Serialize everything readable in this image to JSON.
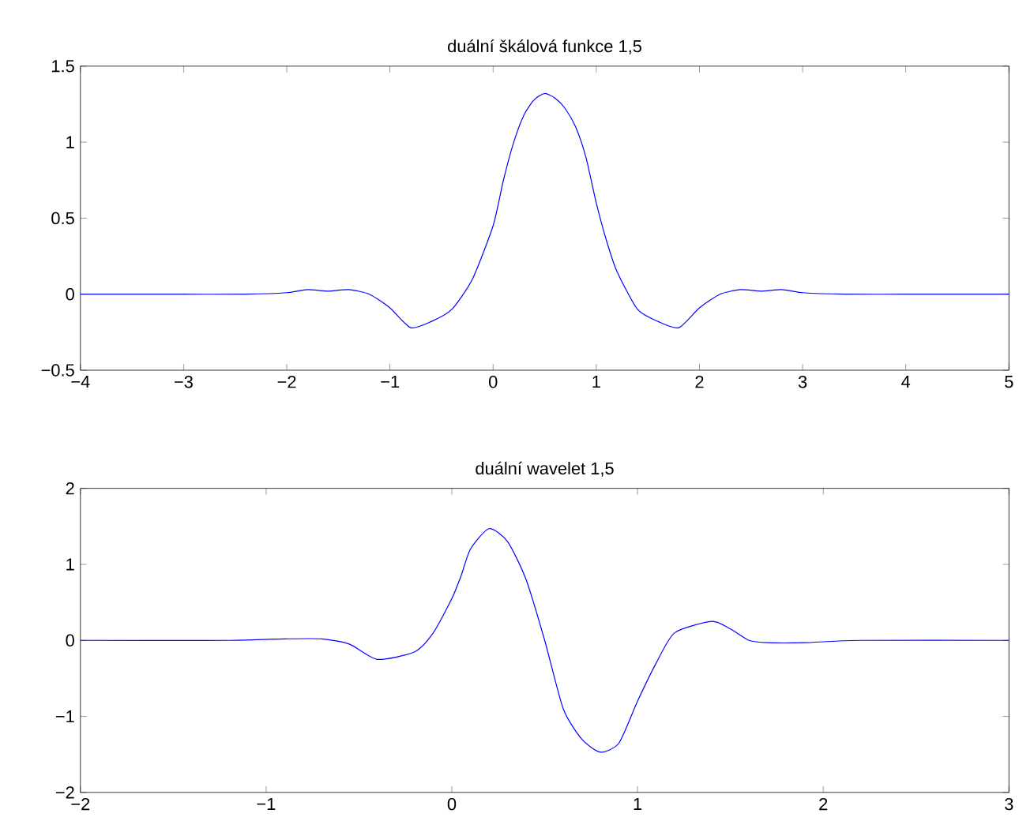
{
  "chart_data": [
    {
      "type": "line",
      "title": "duální škálová funkce 1,5",
      "xlim": [
        -4,
        5
      ],
      "ylim": [
        -0.5,
        1.5
      ],
      "xticks": [
        {
          "value": -4,
          "label": "−4"
        },
        {
          "value": -3,
          "label": "−3"
        },
        {
          "value": -2,
          "label": "−2"
        },
        {
          "value": -1,
          "label": "−1"
        },
        0,
        1,
        2,
        3,
        4,
        5
      ],
      "yticks": [
        {
          "value": -0.5,
          "label": "−0.5"
        },
        0,
        0.5,
        1,
        1.5
      ],
      "series": [
        {
          "color": "#0000ff",
          "x": [
            -4,
            -3,
            -2.4,
            -2,
            -1.8,
            -1.6,
            -1.4,
            -1.2,
            -1.0,
            -0.8,
            -0.6,
            -0.4,
            -0.2,
            0,
            0.1,
            0.2,
            0.3,
            0.4,
            0.5,
            0.6,
            0.7,
            0.8,
            0.9,
            1.0,
            1.1,
            1.2,
            1.4,
            1.6,
            1.8,
            2.0,
            2.2,
            2.4,
            2.6,
            2.8,
            3.0,
            3.4,
            4,
            5
          ],
          "values": [
            0,
            0,
            0,
            0.01,
            0.03,
            0.02,
            0.03,
            0.0,
            -0.09,
            -0.22,
            -0.18,
            -0.1,
            0.1,
            0.45,
            0.75,
            1.0,
            1.18,
            1.28,
            1.32,
            1.29,
            1.22,
            1.1,
            0.9,
            0.6,
            0.35,
            0.15,
            -0.1,
            -0.18,
            -0.22,
            -0.09,
            0.0,
            0.03,
            0.02,
            0.03,
            0.01,
            0,
            0,
            0
          ]
        }
      ]
    },
    {
      "type": "line",
      "title": "duální wavelet 1,5",
      "xlim": [
        -2,
        3
      ],
      "ylim": [
        -2,
        2
      ],
      "xticks": [
        {
          "value": -2,
          "label": "−2"
        },
        {
          "value": -1,
          "label": "−1"
        },
        0,
        1,
        2,
        3
      ],
      "yticks": [
        {
          "value": -2,
          "label": "−2"
        },
        {
          "value": -1,
          "label": "−1"
        },
        0,
        1,
        2
      ],
      "series": [
        {
          "color": "#0000ff",
          "x": [
            -2,
            -1.2,
            -0.9,
            -0.7,
            -0.55,
            -0.4,
            -0.2,
            -0.1,
            0,
            0.05,
            0.1,
            0.2,
            0.3,
            0.4,
            0.5,
            0.6,
            0.7,
            0.8,
            0.9,
            1.0,
            1.1,
            1.2,
            1.4,
            1.5,
            1.6,
            1.7,
            1.9,
            2.2,
            3
          ],
          "values": [
            0,
            0,
            0.02,
            0.02,
            -0.05,
            -0.25,
            -0.15,
            0.1,
            0.55,
            0.85,
            1.2,
            1.47,
            1.3,
            0.8,
            0.0,
            -0.9,
            -1.3,
            -1.47,
            -1.35,
            -0.8,
            -0.3,
            0.1,
            0.25,
            0.15,
            0.0,
            -0.03,
            -0.03,
            0,
            0
          ]
        }
      ]
    }
  ]
}
